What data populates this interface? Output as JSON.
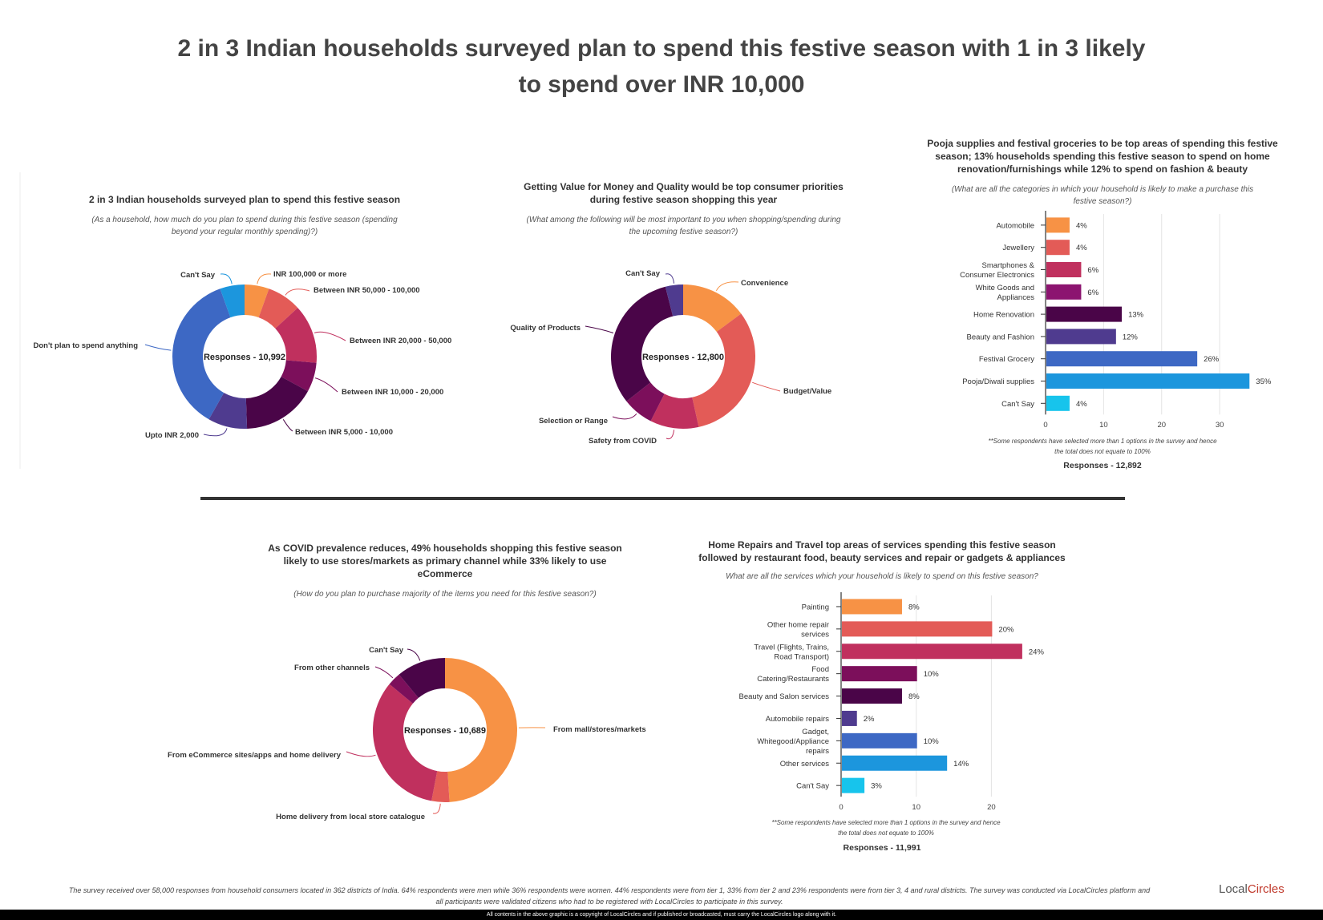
{
  "page": {
    "main_title_line1": "2 in 3 Indian households surveyed plan to spend this festive season with 1 in 3 likely",
    "main_title_line2": "to spend over INR 10,000",
    "footer_line1": "The survey received over 58,000 responses from household consumers located in 362 districts of India. 64% respondents were men while 36% respondents were women. 44% respondents were from tier 1, 33% from tier 2 and 23% respondents were from tier 3, 4 and rural districts. The survey was conducted via LocalCircles platform and",
    "footer_line2": "all participants were validated citizens who had to be registered with LocalCircles to participate in this survey.",
    "copyright": "All contents in the above graphic is a copyright of LocalCircles and if published or broadcasted, must carry the LocalCircles logo along with it.",
    "logo_text_a": "Local",
    "logo_text_b": "C",
    "logo_text_c": "ircles"
  },
  "chart_data": [
    {
      "id": "c1",
      "type": "pie",
      "title": "2 in 3 Indian households surveyed plan to spend this festive season",
      "subtitle_line1": "(As a household, how much do you plan to spend during this festive season (spending",
      "subtitle_line2": "beyond your regular monthly spending)?)",
      "center_label": "Responses - 10,992",
      "slices": [
        {
          "label": "INR 100,000 or more",
          "value": 5,
          "color": "#f79245"
        },
        {
          "label": "Between INR 50,000 - 100,000",
          "value": 7,
          "color": "#e35b57"
        },
        {
          "label": "Between INR 20,000 - 50,000",
          "value": 12,
          "color": "#c0305e"
        },
        {
          "label": "Between INR 10,000 - 20,000",
          "value": 6,
          "color": "#7c0f5b"
        },
        {
          "label": "Between INR 5,000 - 10,000",
          "value": 15,
          "color": "#4a0548"
        },
        {
          "label": "Upto INR 2,000",
          "value": 8,
          "color": "#4f3b8f"
        },
        {
          "label": "Don't plan to spend anything",
          "value": 33,
          "color": "#3d68c4"
        },
        {
          "label": "Can't Say",
          "value": 5,
          "color": "#1c96dd"
        }
      ]
    },
    {
      "id": "c2",
      "type": "pie",
      "title_line1": "Getting Value for Money and Quality would be top consumer priorities",
      "title_line2": "during festive season shopping this year",
      "subtitle_line1": "(What among the following will be most important to you when shopping/spending during",
      "subtitle_line2": "the upcoming festive season?)",
      "center_label": "Responses - 12,800",
      "slices": [
        {
          "label": "Convenience",
          "value": 15,
          "color": "#f79245"
        },
        {
          "label": "Budget/Value",
          "value": 32,
          "color": "#e35b57"
        },
        {
          "label": "Safety from COVID",
          "value": 11,
          "color": "#c0305e"
        },
        {
          "label": "Selection or Range",
          "value": 7,
          "color": "#7c0f5b"
        },
        {
          "label": "Quality of Products",
          "value": 32,
          "color": "#4a0548"
        },
        {
          "label": "Can't Say",
          "value": 4,
          "color": "#4f3b8f"
        }
      ]
    },
    {
      "id": "c3",
      "type": "bar",
      "orientation": "horizontal",
      "title_line1": "Pooja supplies and festival  groceries to be top areas of spending this festive",
      "title_line2": "season; 13% households spending this festive season to spend on home",
      "title_line3": "renovation/furnishings while 12% to spend on fashion & beauty",
      "subtitle_line1": "(What are all the categories in which your household is likely to make a purchase this",
      "subtitle_line2": "festive season?)",
      "note_line1": "**Some respondents have selected more than 1 options in the survey and hence",
      "note_line2": "the total does not equate to 100%",
      "responses": "Responses - 12,892",
      "xlim": [
        0,
        38
      ],
      "ticks": [
        "0",
        "10",
        "20",
        "30"
      ],
      "bars": [
        {
          "label1": "Automobile",
          "label2": "",
          "value": 4,
          "value_label": "4%",
          "color": "#f79245"
        },
        {
          "label1": "Jewellery",
          "label2": "",
          "value": 4,
          "value_label": "4%",
          "color": "#e35b57"
        },
        {
          "label1": "Smartphones &",
          "label2": "Consumer Electronics",
          "value": 6,
          "value_label": "6%",
          "color": "#c0305e"
        },
        {
          "label1": "White Goods and",
          "label2": "Appliances",
          "value": 6,
          "value_label": "6%",
          "color": "#8c1470"
        },
        {
          "label1": "Home Renovation",
          "label2": "",
          "value": 13,
          "value_label": "13%",
          "color": "#4a0548"
        },
        {
          "label1": "Beauty and Fashion",
          "label2": "",
          "value": 12,
          "value_label": "12%",
          "color": "#4f3b8f"
        },
        {
          "label1": "Festival Grocery",
          "label2": "",
          "value": 26,
          "value_label": "26%",
          "color": "#3d68c4"
        },
        {
          "label1": "Pooja/Diwali supplies",
          "label2": "",
          "value": 35,
          "value_label": "35%",
          "color": "#1c96dd"
        },
        {
          "label1": "Can't Say",
          "label2": "",
          "value": 4,
          "value_label": "4%",
          "color": "#17c4ec"
        }
      ]
    },
    {
      "id": "c4",
      "type": "pie",
      "title_line1": "As COVID prevalence reduces, 49% households shopping this festive season",
      "title_line2": "likely to use stores/markets as primary channel while 33% likely to use",
      "title_line3": "eCommerce",
      "subtitle": "(How do you plan to purchase majority of the items you need for this festive season?)",
      "center_label": "Responses - 10,689",
      "slices": [
        {
          "label": "From mall/stores/markets",
          "value": 49,
          "color": "#f79245"
        },
        {
          "label": "Home delivery from local store catalogue",
          "value": 4,
          "color": "#e35b57"
        },
        {
          "label": "From eCommerce sites/apps and home delivery",
          "value": 33,
          "color": "#c0305e"
        },
        {
          "label": "From other channels",
          "value": 3,
          "color": "#7c0f5b"
        },
        {
          "label": "Can't Say",
          "value": 11,
          "color": "#4a0548"
        }
      ]
    },
    {
      "id": "c5",
      "type": "bar",
      "orientation": "horizontal",
      "title_line1": "Home Repairs and Travel top areas of services spending this festive season",
      "title_line2": "followed by restaurant food, beauty services and repair or gadgets & appliances",
      "subtitle": "What are all the services which your household is likely to spend on this festive season?",
      "note_line1": "**Some respondents have selected more than 1 options in the survey and hence",
      "note_line2": "the total does not equate to 100%",
      "responses": "Responses - 11,991",
      "xlim": [
        0,
        27
      ],
      "ticks": [
        "0",
        "10",
        "20"
      ],
      "bars": [
        {
          "label1": "Painting",
          "label2": "",
          "label3": "",
          "value": 8,
          "value_label": "8%",
          "color": "#f79245"
        },
        {
          "label1": "Other home repair",
          "label2": "services",
          "label3": "",
          "value": 20,
          "value_label": "20%",
          "color": "#e35b57"
        },
        {
          "label1": "Travel (Flights, Trains,",
          "label2": "Road Transport)",
          "label3": "",
          "value": 24,
          "value_label": "24%",
          "color": "#c0305e"
        },
        {
          "label1": "Food",
          "label2": "Catering/Restaurants",
          "label3": "",
          "value": 10,
          "value_label": "10%",
          "color": "#7c0f5b"
        },
        {
          "label1": "Beauty and Salon services",
          "label2": "",
          "label3": "",
          "value": 8,
          "value_label": "8%",
          "color": "#4a0548"
        },
        {
          "label1": "Automobile repairs",
          "label2": "",
          "label3": "",
          "value": 2,
          "value_label": "2%",
          "color": "#4f3b8f"
        },
        {
          "label1": "Gadget,",
          "label2": "Whitegood/Appliance",
          "label3": "repairs",
          "value": 10,
          "value_label": "10%",
          "color": "#3d68c4"
        },
        {
          "label1": "Other services",
          "label2": "",
          "label3": "",
          "value": 14,
          "value_label": "14%",
          "color": "#1c96dd"
        },
        {
          "label1": "Can't Say",
          "label2": "",
          "label3": "",
          "value": 3,
          "value_label": "3%",
          "color": "#17c4ec"
        }
      ]
    }
  ]
}
